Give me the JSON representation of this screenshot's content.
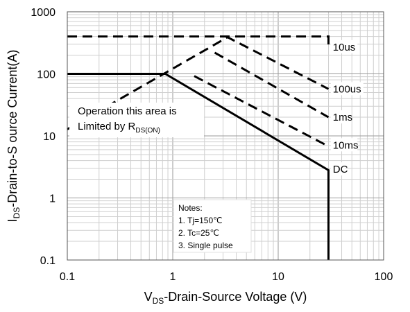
{
  "chart_data": {
    "type": "line",
    "scale": {
      "x": "log",
      "y": "log"
    },
    "xlim": [
      0.1,
      100
    ],
    "ylim": [
      0.1,
      1000
    ],
    "grid": true,
    "x_ticks": [
      "0.1",
      "1",
      "10",
      "100"
    ],
    "y_ticks": [
      "0.1",
      "1",
      "10",
      "100",
      "1000"
    ],
    "xlabel": {
      "main": "V",
      "sub": "DS",
      "rest": "-Drain-Source Voltage (V)"
    },
    "ylabel": {
      "main": "I",
      "sub": "DS",
      "rest": "-Drain-to-S ource Current(A)"
    },
    "series": [
      {
        "name": "10us",
        "style": "dashed",
        "points": [
          [
            0.1,
            400
          ],
          [
            30,
            400
          ],
          [
            30,
            280
          ]
        ]
      },
      {
        "name": "100us",
        "style": "dashed",
        "points": [
          [
            3.2,
            400
          ],
          [
            30,
            57
          ]
        ]
      },
      {
        "name": "1ms",
        "style": "dashed",
        "points": [
          [
            2.5,
            220
          ],
          [
            30,
            20
          ]
        ]
      },
      {
        "name": "10ms",
        "style": "dashed",
        "points": [
          [
            1.6,
            92
          ],
          [
            30,
            6.8
          ]
        ]
      },
      {
        "name": "DC",
        "style": "solid",
        "points": [
          [
            0.1,
            100
          ],
          [
            0.85,
            100
          ],
          [
            30,
            2.8
          ],
          [
            30,
            0.1
          ]
        ]
      },
      {
        "name": "Rds(on) limit",
        "style": "dashed",
        "points": [
          [
            0.1,
            12.8
          ],
          [
            3.4,
            400
          ]
        ]
      }
    ],
    "line_labels": [
      {
        "text": "10us",
        "x": 32,
        "y": 270
      },
      {
        "text": "100us",
        "x": 32,
        "y": 57
      },
      {
        "text": "1ms",
        "x": 32,
        "y": 20
      },
      {
        "text": "10ms",
        "x": 32,
        "y": 7.1
      },
      {
        "text": "DC",
        "x": 32,
        "y": 2.9
      }
    ],
    "annotations": {
      "limit_line1": "Operation this area is",
      "limit_line2_main": "Limited  by R",
      "limit_line2_sub": "DS(ON)",
      "notes_title": "Notes:",
      "notes": [
        "1. Tj=150℃",
        "2. Tc=25℃",
        "3. Single pulse"
      ]
    }
  }
}
